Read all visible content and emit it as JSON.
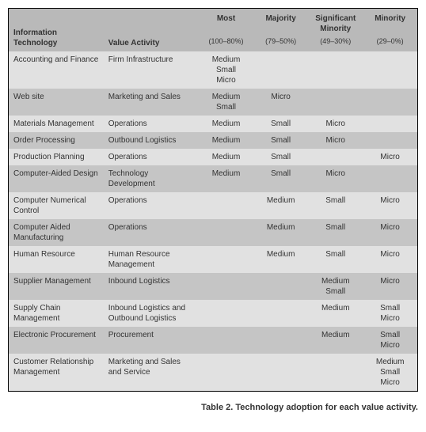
{
  "caption": "Table 2. Technology adoption for each value activity.",
  "headers": {
    "info_tech": "Information Technology",
    "value_activity": "Value Activity",
    "groups": [
      {
        "label": "Most",
        "range": "(100–80%)"
      },
      {
        "label": "Majority",
        "range": "(79–50%)"
      },
      {
        "label": "Significant Minority",
        "range": "(49–30%)"
      },
      {
        "label": "Minority",
        "range": "(29–0%)"
      }
    ]
  },
  "rows": [
    {
      "it": "Accounting and Finance",
      "va": "Firm Infrastructure",
      "cells": [
        "Medium\nSmall\nMicro",
        "",
        "",
        ""
      ]
    },
    {
      "it": "Web site",
      "va": "Marketing and Sales",
      "cells": [
        "Medium\nSmall",
        "Micro",
        "",
        ""
      ]
    },
    {
      "it": "Materials Management",
      "va": "Operations",
      "cells": [
        "Medium",
        "Small",
        "Micro",
        ""
      ]
    },
    {
      "it": "Order Processing",
      "va": "Outbound Logistics",
      "cells": [
        "Medium",
        "Small",
        "Micro",
        ""
      ]
    },
    {
      "it": "Production Planning",
      "va": "Operations",
      "cells": [
        "Medium",
        "Small",
        "",
        "Micro"
      ]
    },
    {
      "it": "Computer-Aided Design",
      "va": "Technology Development",
      "cells": [
        "Medium",
        "Small",
        "Micro",
        ""
      ]
    },
    {
      "it": "Computer Numerical Control",
      "va": "Operations",
      "cells": [
        "",
        "Medium",
        "Small",
        "Micro"
      ]
    },
    {
      "it": "Computer Aided Manufacturing",
      "va": "Operations",
      "cells": [
        "",
        "Medium",
        "Small",
        "Micro"
      ]
    },
    {
      "it": "Human Resource",
      "va": "Human Resource Management",
      "cells": [
        "",
        "Medium",
        "Small",
        "Micro"
      ]
    },
    {
      "it": "Supplier Management",
      "va": "Inbound Logistics",
      "cells": [
        "",
        "",
        "Medium\nSmall",
        "Micro"
      ]
    },
    {
      "it": "Supply Chain Management",
      "va": "Inbound Logistics and Outbound Logistics",
      "cells": [
        "",
        "",
        "Medium",
        "Small\nMicro"
      ]
    },
    {
      "it": "Electronic Procurement",
      "va": "Procurement",
      "cells": [
        "",
        "",
        "Medium",
        "Small\nMicro"
      ]
    },
    {
      "it": "Customer Relationship Management",
      "va": "Marketing and Sales and Service",
      "cells": [
        "",
        "",
        "",
        "Medium\nSmall\nMicro"
      ]
    }
  ],
  "colors": {
    "header_bg": "#b9b9b9",
    "row_odd_bg": "#e1e1e1",
    "row_even_bg": "#c5c5c5",
    "border": "#000000",
    "text": "#333333"
  }
}
